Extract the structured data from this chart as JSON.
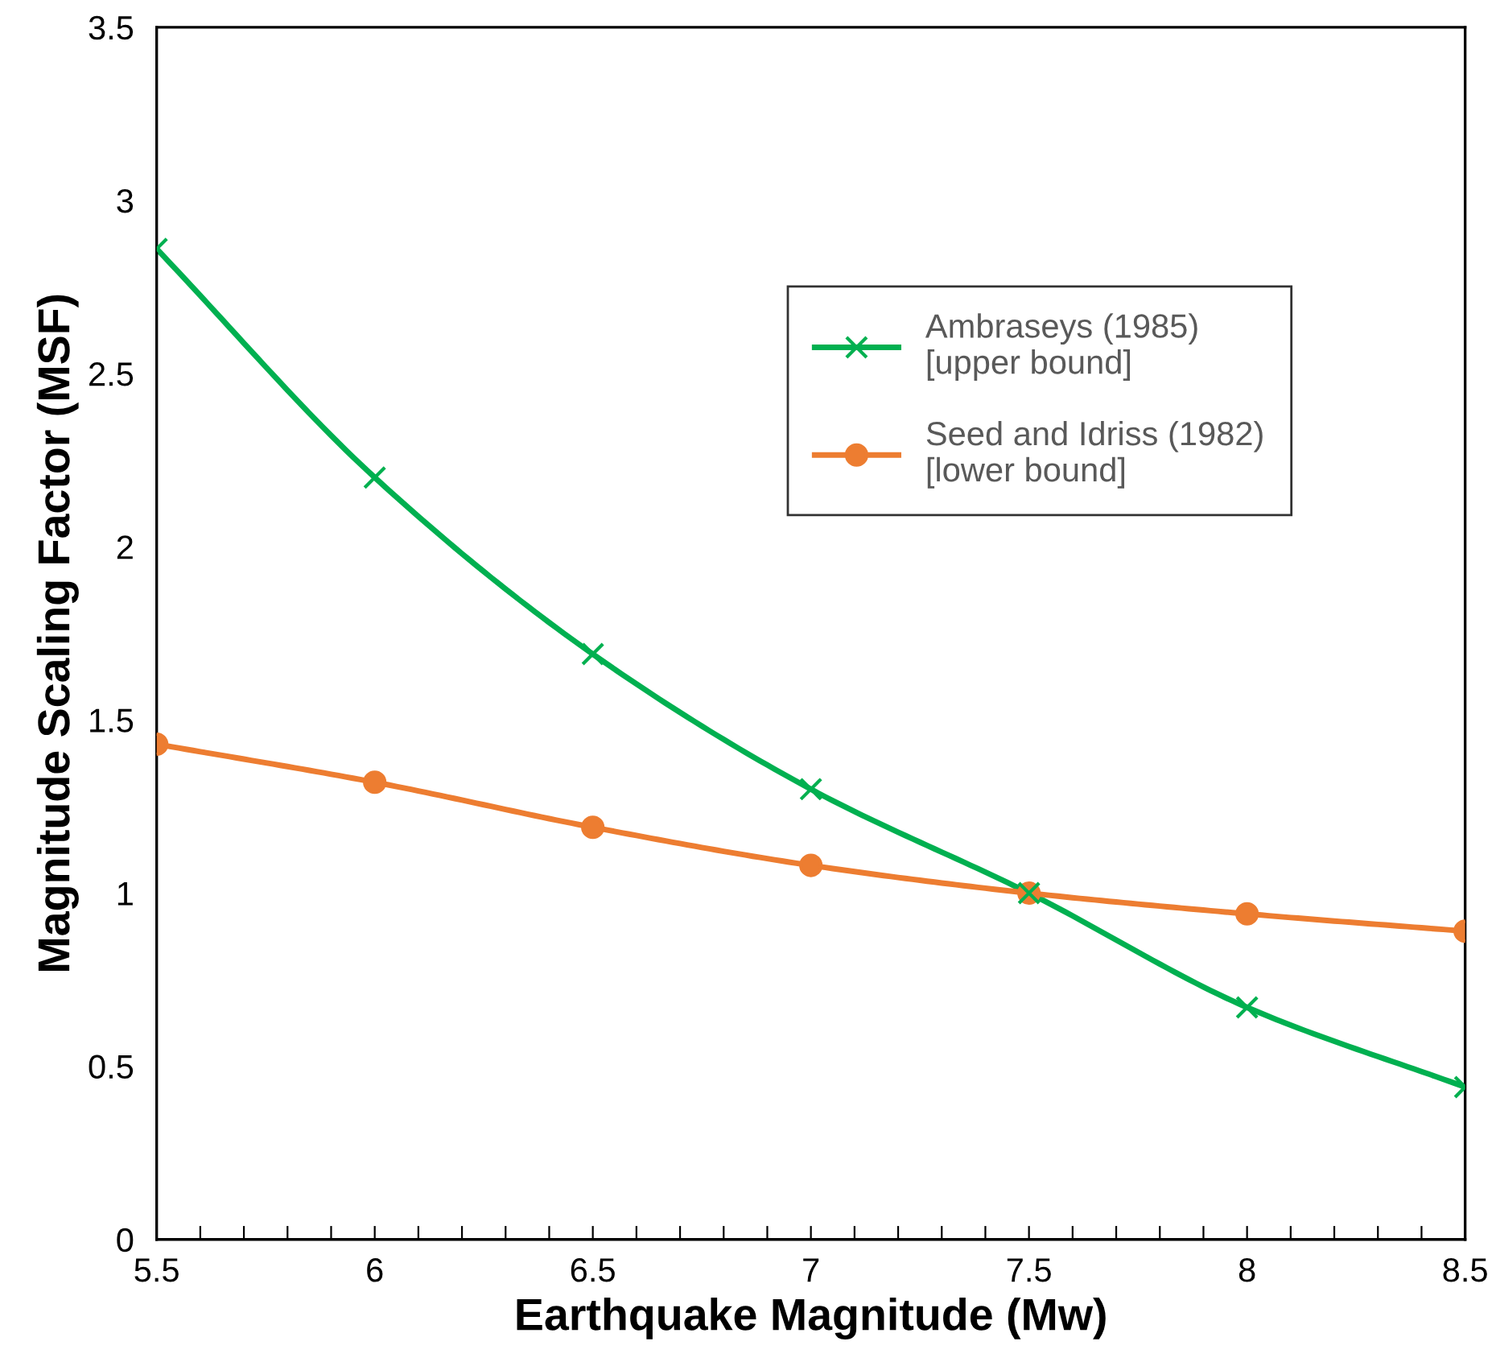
{
  "chart_data": {
    "type": "line",
    "xlabel": "Earthquake Magnitude (Mw)",
    "ylabel": "Magnitude Scaling Factor (MSF)",
    "x": [
      5.5,
      6,
      6.5,
      7,
      7.5,
      8,
      8.5
    ],
    "series": [
      {
        "name": "Ambraseys (1985)\n[upper bound]",
        "color": "#00b050",
        "marker": "cross",
        "values": [
          2.86,
          2.2,
          1.69,
          1.3,
          1.0,
          0.67,
          0.44
        ]
      },
      {
        "name": "Seed and Idriss (1982)\n[lower bound]",
        "color": "#ed7d31",
        "marker": "circle",
        "values": [
          1.43,
          1.32,
          1.19,
          1.08,
          1.0,
          0.94,
          0.89
        ]
      }
    ],
    "xlim": [
      5.5,
      8.5
    ],
    "ylim": [
      0,
      3.5
    ],
    "xticks": [
      5.5,
      {
        "value": 5.6,
        "label": null
      },
      {
        "value": 5.7,
        "label": null
      },
      {
        "value": 5.8,
        "label": null
      },
      {
        "value": 5.9,
        "label": null
      },
      6,
      {
        "value": 6.1,
        "label": null
      },
      {
        "value": 6.2,
        "label": null
      },
      {
        "value": 6.3,
        "label": null
      },
      {
        "value": 6.4,
        "label": null
      },
      6.5,
      {
        "value": 6.6,
        "label": null
      },
      {
        "value": 6.7,
        "label": null
      },
      {
        "value": 6.8,
        "label": null
      },
      {
        "value": 6.9,
        "label": null
      },
      7,
      {
        "value": 7.1,
        "label": null
      },
      {
        "value": 7.2,
        "label": null
      },
      {
        "value": 7.3,
        "label": null
      },
      {
        "value": 7.4,
        "label": null
      },
      7.5,
      {
        "value": 7.6,
        "label": null
      },
      {
        "value": 7.7,
        "label": null
      },
      {
        "value": 7.8,
        "label": null
      },
      {
        "value": 7.9,
        "label": null
      },
      8,
      {
        "value": 8.1,
        "label": null
      },
      {
        "value": 8.2,
        "label": null
      },
      {
        "value": 8.3,
        "label": null
      },
      {
        "value": 8.4,
        "label": null
      },
      8.5
    ],
    "yticks": [
      0,
      0.5,
      1,
      1.5,
      2,
      2.5,
      3,
      3.5
    ],
    "grid": false,
    "legend": "top right",
    "line_style": "solid"
  }
}
